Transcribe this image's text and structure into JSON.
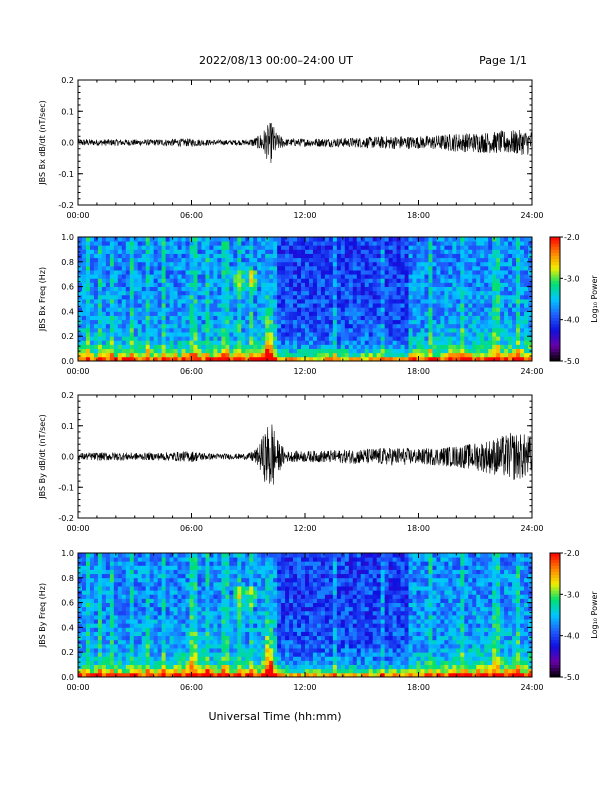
{
  "header": {
    "title": "2022/08/13  00:00–24:00 UT",
    "page_label": "Page 1/1"
  },
  "xlabel": "Universal Time (hh:mm)",
  "colors": {
    "trace": "#000000",
    "colormap": [
      "#000000",
      "#6a00a8",
      "#1010e0",
      "#2060ff",
      "#00c8ff",
      "#00e070",
      "#f0f000",
      "#ff8000",
      "#ff0000"
    ]
  },
  "chart_data": [
    {
      "type": "line",
      "title": "",
      "xlabel": "",
      "ylabel": "JBS Bx dB/dt (nT/sec)",
      "xlim": [
        0,
        24
      ],
      "ylim": [
        -0.2,
        0.2
      ],
      "x_ticklabels": [
        "00:00",
        "06:00",
        "12:00",
        "18:00",
        "24:00"
      ],
      "y_ticklabels": [
        "-0.2",
        "-0.1",
        "0.0",
        "0.1",
        "0.2"
      ],
      "envelope": {
        "hour": [
          0,
          1,
          2,
          3,
          4,
          5,
          6,
          7,
          8,
          9,
          9.5,
          10,
          10.25,
          10.5,
          11,
          12,
          13,
          14,
          15,
          16,
          17,
          18,
          19,
          20,
          21,
          22,
          23,
          24
        ],
        "amplitude": [
          0.012,
          0.01,
          0.011,
          0.01,
          0.01,
          0.012,
          0.013,
          0.009,
          0.008,
          0.009,
          0.02,
          0.055,
          0.07,
          0.03,
          0.012,
          0.013,
          0.014,
          0.015,
          0.017,
          0.02,
          0.022,
          0.02,
          0.024,
          0.03,
          0.032,
          0.035,
          0.04,
          0.04
        ]
      }
    },
    {
      "type": "heatmap",
      "title": "",
      "xlabel": "",
      "ylabel": "JBS Bx Freq (Hz)",
      "xlim": [
        0,
        24
      ],
      "ylim": [
        0,
        1.0
      ],
      "x_ticklabels": [
        "00:00",
        "06:00",
        "12:00",
        "18:00",
        "24:00"
      ],
      "y_ticklabels": [
        "0.0",
        "0.2",
        "0.4",
        "0.6",
        "0.8",
        "1.0"
      ],
      "colorbar": {
        "label": "Log₁₀ Power",
        "range": [
          -5.0,
          -2.0
        ],
        "ticklabels": [
          "-5.0",
          "-4.0",
          "-3.0",
          "-2.0"
        ]
      }
    },
    {
      "type": "line",
      "title": "",
      "xlabel": "",
      "ylabel": "JBS By dB/dt (nT/sec)",
      "xlim": [
        0,
        24
      ],
      "ylim": [
        -0.2,
        0.2
      ],
      "x_ticklabels": [
        "00:00",
        "06:00",
        "12:00",
        "18:00",
        "24:00"
      ],
      "y_ticklabels": [
        "-0.2",
        "-0.1",
        "0.0",
        "0.1",
        "0.2"
      ],
      "envelope": {
        "hour": [
          0,
          1,
          2,
          3,
          4,
          5,
          6,
          7,
          8,
          9,
          9.5,
          10,
          10.25,
          10.5,
          11,
          12,
          13,
          14,
          15,
          16,
          17,
          18,
          19,
          20,
          21,
          22,
          23,
          24
        ],
        "amplitude": [
          0.012,
          0.013,
          0.014,
          0.012,
          0.012,
          0.015,
          0.018,
          0.01,
          0.009,
          0.01,
          0.03,
          0.1,
          0.13,
          0.06,
          0.018,
          0.018,
          0.02,
          0.022,
          0.025,
          0.028,
          0.03,
          0.025,
          0.03,
          0.035,
          0.045,
          0.06,
          0.08,
          0.07
        ]
      }
    },
    {
      "type": "heatmap",
      "title": "",
      "xlabel": "",
      "ylabel": "JBS By Freq (Hz)",
      "xlim": [
        0,
        24
      ],
      "ylim": [
        0,
        1.0
      ],
      "x_ticklabels": [
        "00:00",
        "06:00",
        "12:00",
        "18:00",
        "24:00"
      ],
      "y_ticklabels": [
        "0.0",
        "0.2",
        "0.4",
        "0.6",
        "0.8",
        "1.0"
      ],
      "colorbar": {
        "label": "Log₁₀ Power",
        "range": [
          -5.0,
          -2.0
        ],
        "ticklabels": [
          "-5.0",
          "-4.0",
          "-3.0",
          "-2.0"
        ]
      }
    }
  ]
}
